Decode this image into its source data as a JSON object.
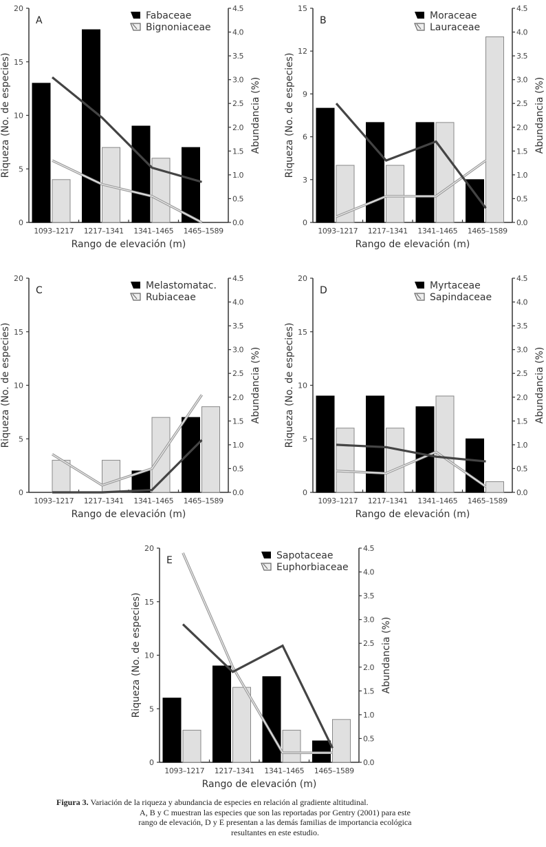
{
  "chart_data": [
    {
      "type": "bar+line",
      "panel_label": "A",
      "categories": [
        "1093–1217",
        "1217–1341",
        "1341–1465",
        "1465–1589"
      ],
      "xlabel": "Rango de elevación (m)",
      "ylabel": "Riqueza (No. de especies)",
      "y2label": "Abundancia (%)",
      "ylim": [
        0,
        20
      ],
      "yticks": [
        0,
        5,
        10,
        15,
        20
      ],
      "y2lim": [
        0,
        4.5
      ],
      "y2ticks": [
        "0.0",
        "0.5",
        "1.0",
        "1.5",
        "2.0",
        "2.5",
        "3.0",
        "3.5",
        "4.0",
        "4.5"
      ],
      "legend_position": "top-right",
      "series": [
        {
          "name": "Fabaceae",
          "color": "#000000",
          "line_color": "#444444",
          "richness": [
            13,
            18,
            9,
            7
          ],
          "abundance": [
            3.05,
            2.2,
            1.15,
            0.85
          ]
        },
        {
          "name": "Bignoniaceae",
          "color": "#e0e0e0",
          "line_color": "#9a9a9a",
          "richness": [
            4,
            7,
            6,
            0
          ],
          "abundance": [
            1.3,
            0.8,
            0.55,
            0.0
          ]
        }
      ]
    },
    {
      "type": "bar+line",
      "panel_label": "B",
      "categories": [
        "1093–1217",
        "1217–1341",
        "1341–1465",
        "1465–1589"
      ],
      "xlabel": "Rango de elevación (m)",
      "ylabel": "Riqueza (No. de especies)",
      "y2label": "Abundancia (%)",
      "ylim": [
        0,
        15
      ],
      "yticks": [
        0,
        3,
        6,
        9,
        12,
        15
      ],
      "y2lim": [
        0,
        4.5
      ],
      "y2ticks": [
        "0.0",
        "0.5",
        "1.0",
        "1.5",
        "2.0",
        "2.5",
        "3.0",
        "3.5",
        "4.0",
        "4.5"
      ],
      "legend_position": "top-right",
      "series": [
        {
          "name": "Moraceae",
          "color": "#000000",
          "line_color": "#444444",
          "richness": [
            8,
            7,
            7,
            3
          ],
          "abundance": [
            2.5,
            1.3,
            1.7,
            0.3
          ]
        },
        {
          "name": "Lauraceae",
          "color": "#e0e0e0",
          "line_color": "#9a9a9a",
          "richness": [
            4,
            4,
            7,
            13
          ],
          "abundance": [
            0.12,
            0.55,
            0.55,
            1.3
          ]
        }
      ]
    },
    {
      "type": "bar+line",
      "panel_label": "C",
      "categories": [
        "1093–1217",
        "1217–1341",
        "1341–1465",
        "1465–1589"
      ],
      "xlabel": "Rango de elevación (m)",
      "ylabel": "Riqueza (No. de especies)",
      "y2label": "Abundancia (%)",
      "ylim": [
        0,
        20
      ],
      "yticks": [
        0,
        5,
        10,
        15,
        20
      ],
      "y2lim": [
        0,
        4.5
      ],
      "y2ticks": [
        "0.0",
        "0.5",
        "1.0",
        "1.5",
        "2.0",
        "2.5",
        "3.0",
        "3.5",
        "4.0",
        "4.5"
      ],
      "legend_position": "top-right",
      "series": [
        {
          "name": "Melastomatac.",
          "color": "#000000",
          "line_color": "#444444",
          "richness": [
            0,
            0,
            2,
            7
          ],
          "abundance": [
            0.0,
            0.0,
            0.05,
            1.1
          ]
        },
        {
          "name": "Rubiaceae",
          "color": "#e0e0e0",
          "line_color": "#9a9a9a",
          "richness": [
            3,
            3,
            7,
            8
          ],
          "abundance": [
            0.8,
            0.15,
            0.5,
            2.05
          ]
        }
      ]
    },
    {
      "type": "bar+line",
      "panel_label": "D",
      "categories": [
        "1093–1217",
        "1217–1341",
        "1341–1465",
        "1465–1589"
      ],
      "xlabel": "Rango de elevación (m)",
      "ylabel": "Riqueza (No. de especies)",
      "y2label": "Abundancia (%)",
      "ylim": [
        0,
        20
      ],
      "yticks": [
        0,
        5,
        10,
        15,
        20
      ],
      "y2lim": [
        0,
        4.5
      ],
      "y2ticks": [
        "0.0",
        "0.5",
        "1.0",
        "1.5",
        "2.0",
        "2.5",
        "3.0",
        "3.5",
        "4.0",
        "4.5"
      ],
      "legend_position": "top-right",
      "series": [
        {
          "name": "Myrtaceae",
          "color": "#000000",
          "line_color": "#444444",
          "richness": [
            9,
            9,
            8,
            5
          ],
          "abundance": [
            1.0,
            0.95,
            0.75,
            0.65
          ]
        },
        {
          "name": "Sapindaceae",
          "color": "#e0e0e0",
          "line_color": "#9a9a9a",
          "richness": [
            6,
            6,
            9,
            1
          ],
          "abundance": [
            0.45,
            0.4,
            0.85,
            0.12
          ]
        }
      ]
    },
    {
      "type": "bar+line",
      "panel_label": "E",
      "categories": [
        "1093–1217",
        "1217–1341",
        "1341–1465",
        "1465–1589"
      ],
      "xlabel": "Rango de elevación (m)",
      "ylabel": "Riqueza (No. de especies)",
      "y2label": "Abundancia (%)",
      "ylim": [
        0,
        20
      ],
      "yticks": [
        0,
        5,
        10,
        15,
        20
      ],
      "y2lim": [
        0,
        4.5
      ],
      "y2ticks": [
        "0.0",
        "0.5",
        "1.0",
        "1.5",
        "2.0",
        "2.5",
        "3.0",
        "3.5",
        "4.0",
        "4.5"
      ],
      "legend_position": "top-right",
      "series": [
        {
          "name": "Sapotaceae",
          "color": "#000000",
          "line_color": "#444444",
          "richness": [
            6,
            9,
            8,
            2
          ],
          "abundance": [
            2.9,
            1.9,
            2.45,
            0.3
          ]
        },
        {
          "name": "Euphorbiaceae",
          "color": "#e0e0e0",
          "line_color": "#9a9a9a",
          "richness": [
            3,
            7,
            3,
            4
          ],
          "abundance": [
            4.4,
            2.0,
            0.2,
            0.2
          ]
        }
      ]
    }
  ],
  "caption": {
    "label": "Figura 3.",
    "line1": " Variación de la riqueza y abundancia de especies en relación al gradiente altitudinal.",
    "line2": "A, B y C muestran las especies que son las reportadas por Gentry (2001) para este",
    "line3": "rango de elevación, D y E presentan a las demás familias de importancia ecológica",
    "line4": "resultantes en este estudio."
  }
}
